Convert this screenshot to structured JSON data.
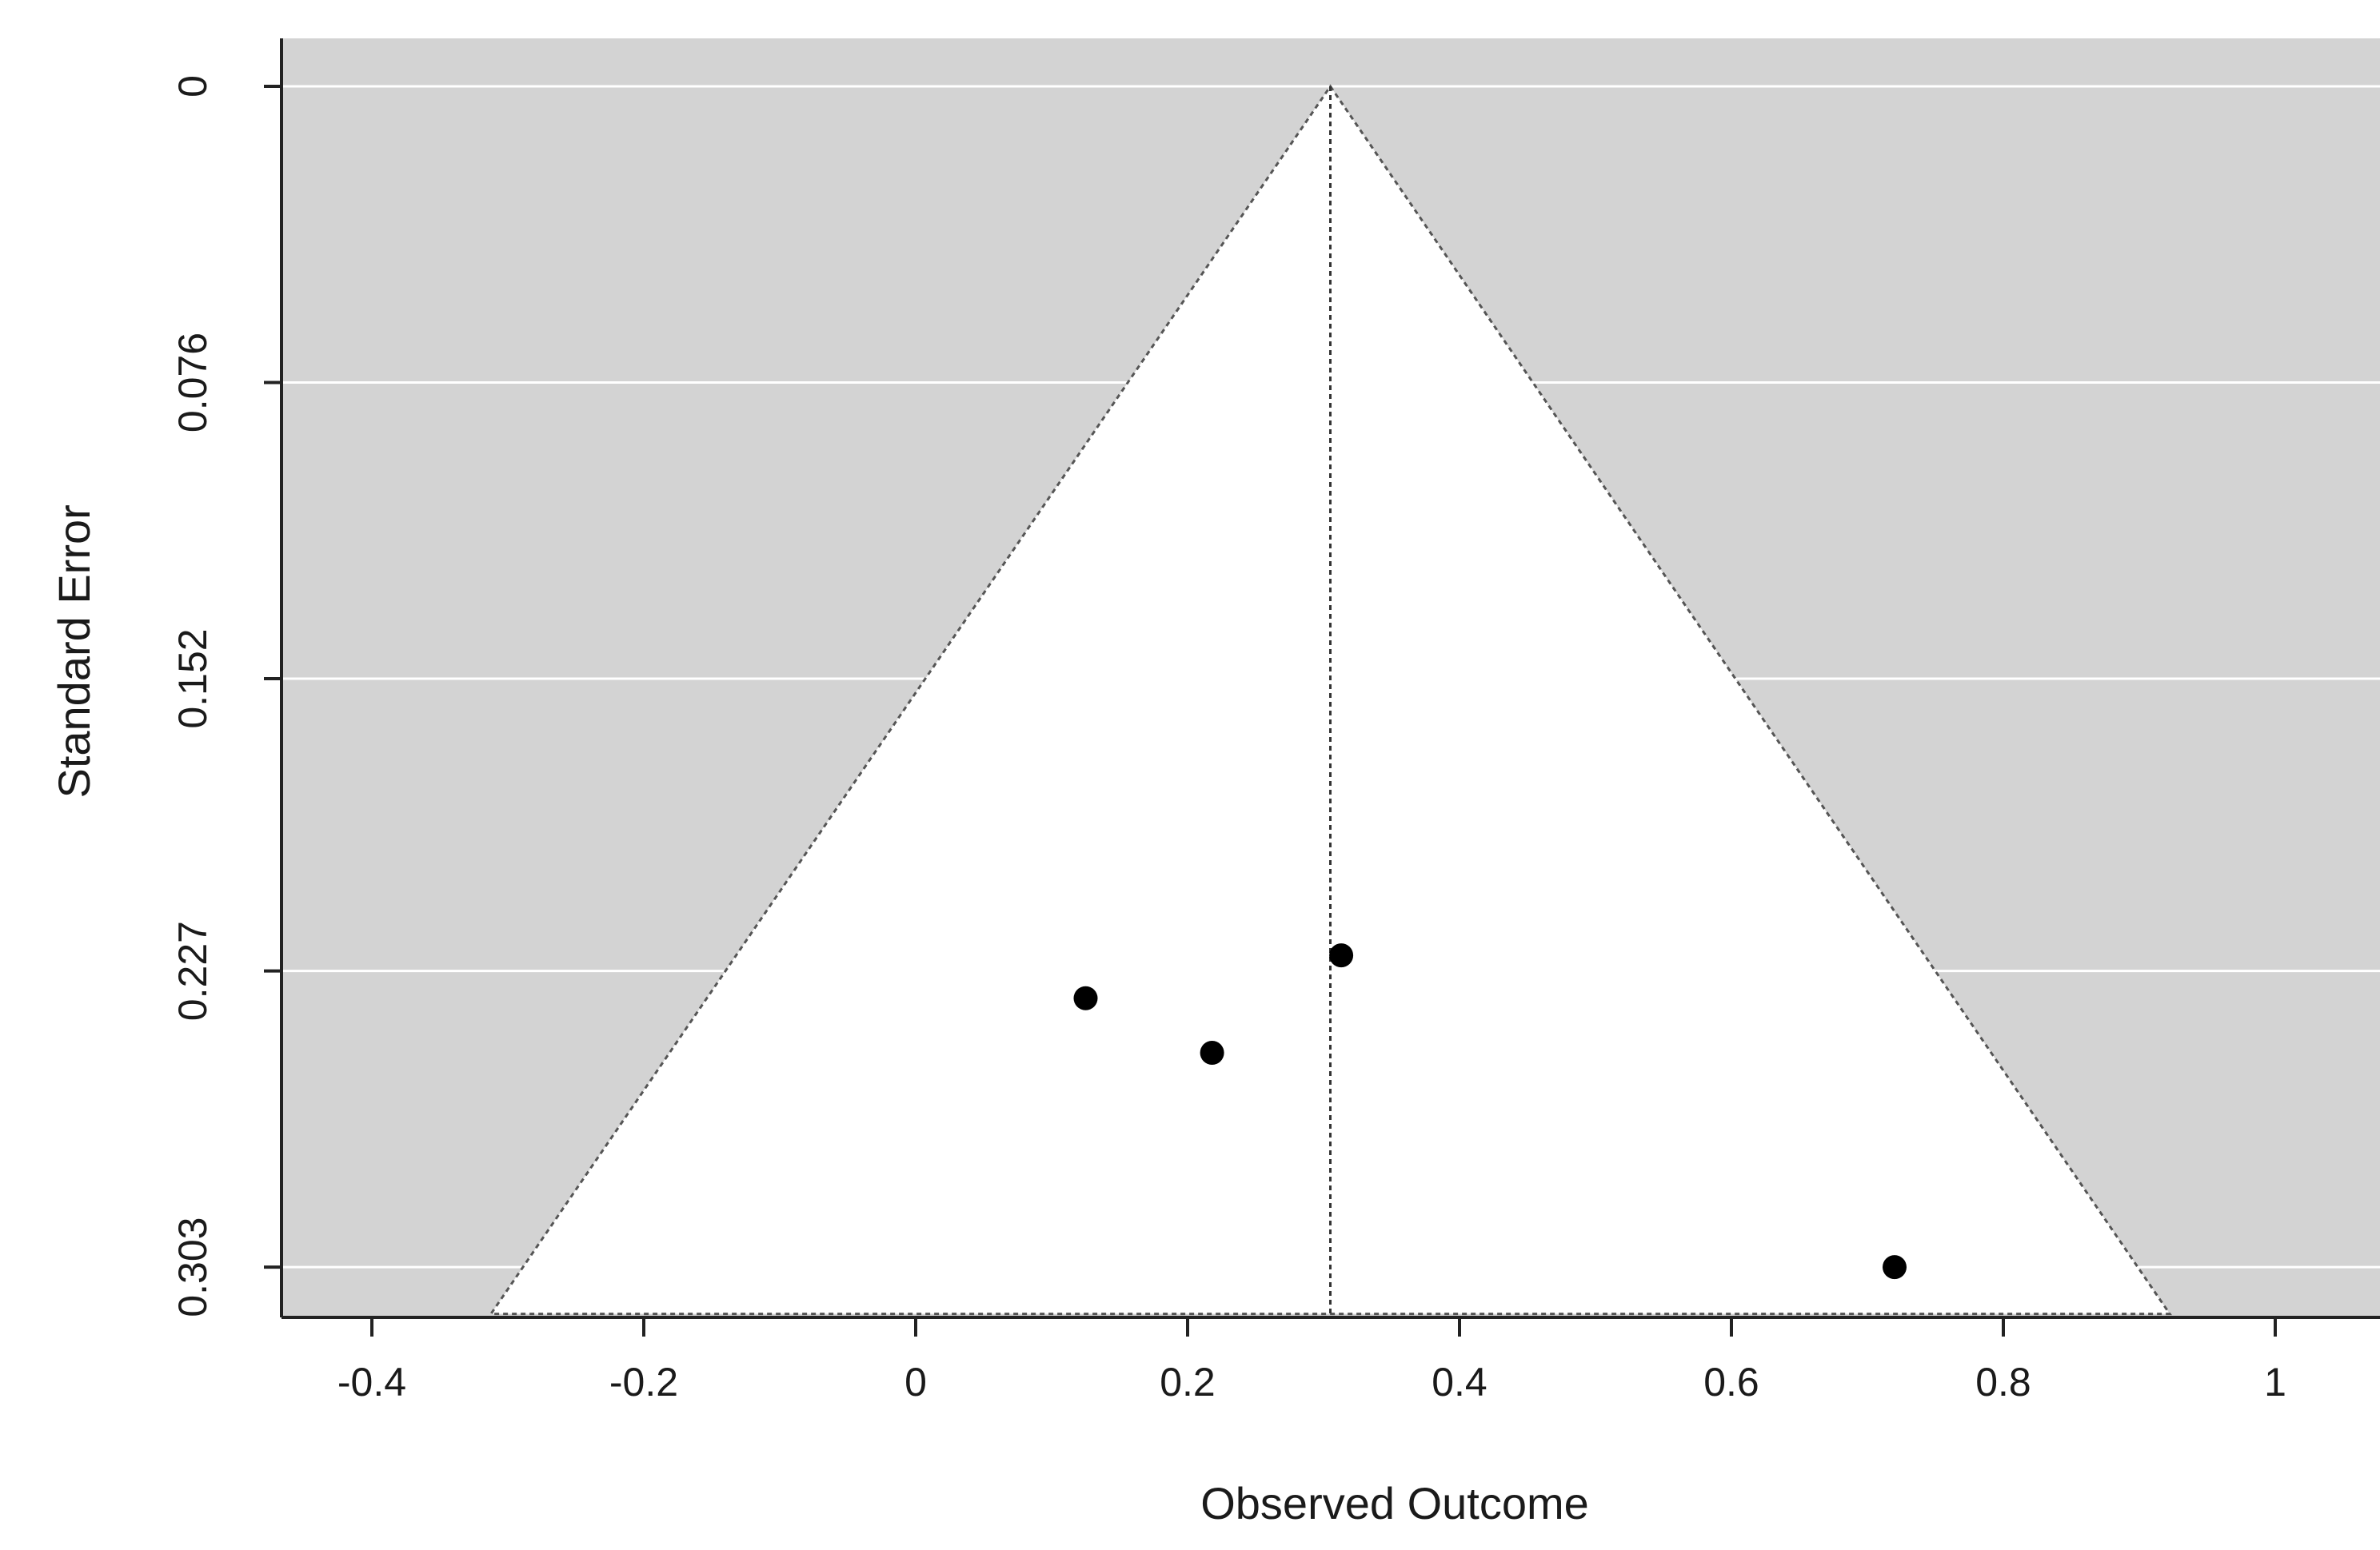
{
  "chart_data": {
    "type": "scatter",
    "subtype": "funnel-plot",
    "title": "",
    "xlabel": "Observed Outcome",
    "ylabel": "Standard Error",
    "xlim": [
      -0.46,
      1.08
    ],
    "ylim": [
      0,
      0.315
    ],
    "y_reversed": true,
    "x_ticks": [
      -0.4,
      -0.2,
      0,
      0.2,
      0.4,
      0.6,
      0.8,
      1
    ],
    "x_tick_labels": [
      "-0.4",
      "-0.2",
      "0",
      "0.2",
      "0.4",
      "0.6",
      "0.8",
      "1"
    ],
    "y_ticks": [
      0,
      0.076,
      0.152,
      0.227,
      0.303
    ],
    "y_tick_labels": [
      "0",
      "0.076",
      "0.152",
      "0.227",
      "0.303"
    ],
    "grid": true,
    "pooled_estimate": 0.305,
    "funnel_multiplier": 1.96,
    "points": [
      {
        "x": 0.313,
        "y": 0.223
      },
      {
        "x": 0.125,
        "y": 0.234
      },
      {
        "x": 0.218,
        "y": 0.248
      },
      {
        "x": 0.72,
        "y": 0.303
      }
    ],
    "colors": {
      "background": "#d3d3d3",
      "funnel": "#ffffff",
      "grid": "#ffffff",
      "points": "#000000",
      "reference_line": "#333333"
    }
  }
}
